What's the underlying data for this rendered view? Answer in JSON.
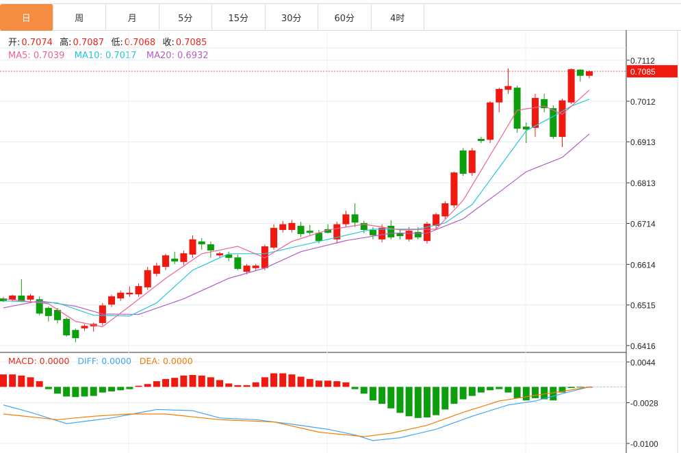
{
  "tabs": [
    "日",
    "周",
    "月",
    "5分",
    "15分",
    "30分",
    "60分",
    "4时"
  ],
  "active_tab": 0,
  "ohlc_info": {
    "open_label": "开:",
    "open": "0.7074",
    "high_label": "高:",
    "high": "0.7087",
    "low_label": "低:",
    "low": "0.7068",
    "close_label": "收:",
    "close": "0.7085"
  },
  "ma_info": {
    "ma5": "MA5: 0.7039",
    "ma10": "MA10: 0.7017",
    "ma20": "MA20: 0.6932"
  },
  "macd_info": {
    "macd": "MACD: 0.0000",
    "diff": "DIFF: 0.0000",
    "dea": "DEA: 0.0000"
  },
  "price_axis": [
    "0.7112",
    "0.7012",
    "0.6913",
    "0.6813",
    "0.6714",
    "0.6614",
    "0.6515",
    "0.6416"
  ],
  "current_price": "0.7085",
  "macd_axis": [
    "0.0044",
    "-0.0028",
    "-0.0100"
  ],
  "colors": {
    "up": "#f0190f",
    "down": "#0d9e0d",
    "accent": "#f48c42"
  },
  "chart_data": {
    "type": "candlestick",
    "price_range": [
      0.6416,
      0.7112
    ],
    "candles": [
      [
        0.6531,
        0.6535,
        0.6522,
        0.6524
      ],
      [
        0.6528,
        0.654,
        0.6525,
        0.6538
      ],
      [
        0.6538,
        0.6578,
        0.6522,
        0.6524
      ],
      [
        0.6528,
        0.6542,
        0.6522,
        0.6538
      ],
      [
        0.6529,
        0.6536,
        0.649,
        0.6494
      ],
      [
        0.6508,
        0.6512,
        0.6475,
        0.6488
      ],
      [
        0.6503,
        0.6508,
        0.647,
        0.6478
      ],
      [
        0.6481,
        0.6485,
        0.6438,
        0.6441
      ],
      [
        0.6454,
        0.6458,
        0.6424,
        0.6434
      ],
      [
        0.6458,
        0.6468,
        0.6452,
        0.6464
      ],
      [
        0.6463,
        0.6472,
        0.645,
        0.6469
      ],
      [
        0.6471,
        0.652,
        0.6465,
        0.6514
      ],
      [
        0.6516,
        0.654,
        0.651,
        0.6536
      ],
      [
        0.6531,
        0.655,
        0.6525,
        0.6545
      ],
      [
        0.6541,
        0.656,
        0.6535,
        0.6545
      ],
      [
        0.6541,
        0.6568,
        0.6535,
        0.6561
      ],
      [
        0.6558,
        0.6608,
        0.6552,
        0.66
      ],
      [
        0.6591,
        0.6618,
        0.6585,
        0.6611
      ],
      [
        0.6608,
        0.664,
        0.66,
        0.6636
      ],
      [
        0.6628,
        0.6645,
        0.6615,
        0.6621
      ],
      [
        0.662,
        0.6648,
        0.6612,
        0.6641
      ],
      [
        0.6638,
        0.6685,
        0.663,
        0.6675
      ],
      [
        0.667,
        0.6678,
        0.665,
        0.6663
      ],
      [
        0.6663,
        0.667,
        0.663,
        0.6648
      ],
      [
        0.6636,
        0.6645,
        0.663,
        0.6641
      ],
      [
        0.6638,
        0.6645,
        0.6622,
        0.663
      ],
      [
        0.6631,
        0.6638,
        0.66,
        0.6603
      ],
      [
        0.6596,
        0.6615,
        0.659,
        0.6611
      ],
      [
        0.6605,
        0.6615,
        0.66,
        0.6611
      ],
      [
        0.6605,
        0.6662,
        0.66,
        0.6658
      ],
      [
        0.6655,
        0.6712,
        0.665,
        0.6703
      ],
      [
        0.6698,
        0.672,
        0.6692,
        0.6712
      ],
      [
        0.6698,
        0.6722,
        0.6692,
        0.6715
      ],
      [
        0.6708,
        0.6718,
        0.668,
        0.6688
      ],
      [
        0.6696,
        0.671,
        0.6685,
        0.6691
      ],
      [
        0.6691,
        0.6698,
        0.6665,
        0.6671
      ],
      [
        0.67,
        0.6712,
        0.669,
        0.6691
      ],
      [
        0.6675,
        0.6718,
        0.6665,
        0.6712
      ],
      [
        0.6712,
        0.6745,
        0.6705,
        0.6736
      ],
      [
        0.6736,
        0.6763,
        0.6705,
        0.6716
      ],
      [
        0.6715,
        0.672,
        0.669,
        0.6698
      ],
      [
        0.6698,
        0.6705,
        0.6675,
        0.6685
      ],
      [
        0.6675,
        0.6712,
        0.6668,
        0.6703
      ],
      [
        0.6708,
        0.6722,
        0.6675,
        0.668
      ],
      [
        0.6691,
        0.67,
        0.6675,
        0.6683
      ],
      [
        0.6675,
        0.6705,
        0.667,
        0.6696
      ],
      [
        0.6693,
        0.6705,
        0.6675,
        0.668
      ],
      [
        0.6671,
        0.6718,
        0.6665,
        0.6713
      ],
      [
        0.6708,
        0.674,
        0.67,
        0.6736
      ],
      [
        0.6731,
        0.6768,
        0.6725,
        0.6763
      ],
      [
        0.6758,
        0.684,
        0.6752,
        0.6838
      ],
      [
        0.6892,
        0.6898,
        0.683,
        0.6835
      ],
      [
        0.6837,
        0.6898,
        0.683,
        0.6892
      ],
      [
        0.692,
        0.6925,
        0.691,
        0.6915
      ],
      [
        0.6918,
        0.7012,
        0.691,
        0.7009
      ],
      [
        0.7009,
        0.7045,
        0.6985,
        0.7042
      ],
      [
        0.704,
        0.7092,
        0.703,
        0.7049
      ],
      [
        0.7045,
        0.705,
        0.6935,
        0.6945
      ],
      [
        0.695,
        0.696,
        0.691,
        0.6943
      ],
      [
        0.6947,
        0.703,
        0.6925,
        0.702
      ],
      [
        0.7017,
        0.703,
        0.6985,
        0.6995
      ],
      [
        0.6995,
        0.7002,
        0.692,
        0.6925
      ],
      [
        0.6925,
        0.7018,
        0.69,
        0.7014
      ],
      [
        0.7009,
        0.7092,
        0.7005,
        0.709
      ],
      [
        0.7089,
        0.709,
        0.706,
        0.7074
      ],
      [
        0.7074,
        0.7087,
        0.7068,
        0.7085
      ]
    ],
    "ma_points": {
      "ma5": [
        [
          0,
          0.653
        ],
        [
          5,
          0.6518
        ],
        [
          8,
          0.6475
        ],
        [
          11,
          0.6462
        ],
        [
          14,
          0.6512
        ],
        [
          18,
          0.658
        ],
        [
          22,
          0.664
        ],
        [
          26,
          0.6658
        ],
        [
          29,
          0.663
        ],
        [
          32,
          0.667
        ],
        [
          36,
          0.6698
        ],
        [
          40,
          0.6712
        ],
        [
          44,
          0.6698
        ],
        [
          48,
          0.67
        ],
        [
          51,
          0.677
        ],
        [
          54,
          0.688
        ],
        [
          57,
          0.699
        ],
        [
          60,
          0.7
        ],
        [
          62,
          0.698
        ],
        [
          65,
          0.7039
        ]
      ],
      "ma10": [
        [
          0,
          0.6525
        ],
        [
          6,
          0.652
        ],
        [
          10,
          0.649
        ],
        [
          14,
          0.6488
        ],
        [
          17,
          0.652
        ],
        [
          21,
          0.66
        ],
        [
          25,
          0.664
        ],
        [
          29,
          0.664
        ],
        [
          33,
          0.666
        ],
        [
          37,
          0.668
        ],
        [
          41,
          0.67
        ],
        [
          46,
          0.67
        ],
        [
          49,
          0.6715
        ],
        [
          52,
          0.676
        ],
        [
          55,
          0.685
        ],
        [
          58,
          0.694
        ],
        [
          61,
          0.6975
        ],
        [
          63,
          0.7
        ],
        [
          65,
          0.7017
        ]
      ],
      "ma20": [
        [
          0,
          0.6508
        ],
        [
          4,
          0.6525
        ],
        [
          8,
          0.6512
        ],
        [
          11,
          0.6493
        ],
        [
          15,
          0.6492
        ],
        [
          20,
          0.653
        ],
        [
          25,
          0.658
        ],
        [
          29,
          0.6605
        ],
        [
          33,
          0.6645
        ],
        [
          38,
          0.6672
        ],
        [
          43,
          0.669
        ],
        [
          47,
          0.669
        ],
        [
          51,
          0.6725
        ],
        [
          55,
          0.679
        ],
        [
          58,
          0.684
        ],
        [
          62,
          0.6875
        ],
        [
          65,
          0.6932
        ]
      ]
    }
  },
  "macd_data": {
    "range": [
      -0.01,
      0.0044
    ],
    "hist": [
      0.0022,
      0.0022,
      0.002,
      0.0017,
      0.001,
      -0.0004,
      -0.0012,
      -0.0017,
      -0.0018,
      -0.0017,
      -0.0016,
      -0.001,
      -0.0008,
      -0.0006,
      -0.0004,
      0.0002,
      0.0005,
      0.001,
      0.0014,
      0.0016,
      0.002,
      0.0021,
      0.002,
      0.0017,
      0.0012,
      0.0006,
      0.0003,
      0.0003,
      0.0008,
      0.0017,
      0.0024,
      0.0024,
      0.0022,
      0.0018,
      0.0014,
      0.0011,
      0.0011,
      0.001,
      0.0008,
      -0.0004,
      -0.0012,
      -0.0024,
      -0.003,
      -0.0038,
      -0.0046,
      -0.0052,
      -0.0055,
      -0.0054,
      -0.005,
      -0.004,
      -0.003,
      -0.0022,
      -0.0016,
      -0.001,
      -0.0006,
      -0.0004,
      -0.001,
      -0.002,
      -0.0024,
      -0.002,
      -0.0022,
      -0.0024,
      -0.001,
      -0.0002,
      -0.0001,
      0.0
    ],
    "diff": [
      [
        0,
        -0.0032
      ],
      [
        3,
        -0.0045
      ],
      [
        7,
        -0.0065
      ],
      [
        12,
        -0.0055
      ],
      [
        17,
        -0.004
      ],
      [
        21,
        -0.0042
      ],
      [
        24,
        -0.0055
      ],
      [
        28,
        -0.0058
      ],
      [
        32,
        -0.0066
      ],
      [
        36,
        -0.0075
      ],
      [
        39,
        -0.0085
      ],
      [
        41,
        -0.0095
      ],
      [
        44,
        -0.009
      ],
      [
        48,
        -0.0075
      ],
      [
        52,
        -0.0052
      ],
      [
        56,
        -0.0032
      ],
      [
        59,
        -0.0025
      ],
      [
        62,
        -0.0012
      ],
      [
        65,
        0.0
      ]
    ],
    "dea": [
      [
        0,
        -0.0048
      ],
      [
        6,
        -0.0058
      ],
      [
        10,
        -0.0052
      ],
      [
        14,
        -0.0048
      ],
      [
        18,
        -0.0048
      ],
      [
        24,
        -0.0058
      ],
      [
        30,
        -0.0062
      ],
      [
        35,
        -0.008
      ],
      [
        40,
        -0.0088
      ],
      [
        43,
        -0.0082
      ],
      [
        47,
        -0.0068
      ],
      [
        51,
        -0.0045
      ],
      [
        55,
        -0.0025
      ],
      [
        59,
        -0.0015
      ],
      [
        62,
        -0.0008
      ],
      [
        65,
        0.0
      ]
    ]
  }
}
